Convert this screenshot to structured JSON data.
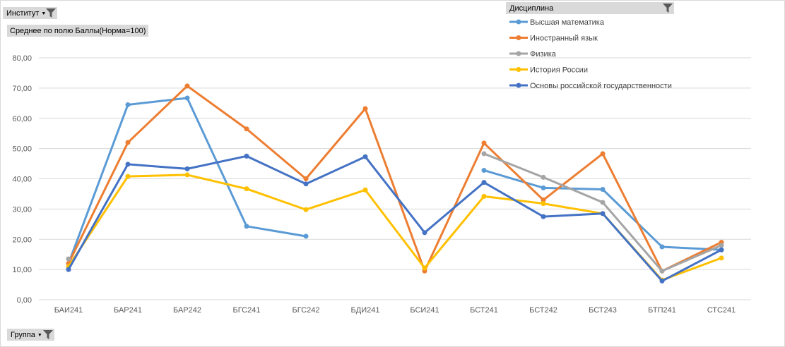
{
  "filters": {
    "institute_label": "Институт",
    "group_label": "Группа",
    "discipline_label": "Дисциплина",
    "value_field_label": "Среднее по полю Баллы(Норма=100)"
  },
  "chart_data": {
    "type": "line",
    "title": "",
    "xlabel": "",
    "ylabel": "",
    "ylim": [
      0,
      80
    ],
    "ytick_step": 10,
    "ytick_labels": [
      "0,00",
      "10,00",
      "20,00",
      "30,00",
      "40,00",
      "50,00",
      "60,00",
      "70,00",
      "80,00"
    ],
    "grid": true,
    "legend_position": "top-right",
    "categories": [
      "БАИ241",
      "БАР241",
      "БАР242",
      "БГС241",
      "БГС242",
      "БДИ241",
      "БСИ241",
      "БСТ241",
      "БСТ242",
      "БСТ243",
      "БТП241",
      "СТС241"
    ],
    "series": [
      {
        "name": "Высшая математика",
        "color": "#5b9bd5",
        "values": [
          12,
          64.5,
          66.7,
          24.3,
          21,
          null,
          null,
          42.8,
          37,
          36.5,
          17.5,
          16.5
        ]
      },
      {
        "name": "Иностранный язык",
        "color": "#ed7d31",
        "values": [
          12,
          52,
          70.7,
          56.5,
          40,
          63.2,
          9.5,
          51.8,
          33,
          48.3,
          9.5,
          19
        ]
      },
      {
        "name": "Физика",
        "color": "#a5a5a5",
        "values": [
          13.5,
          null,
          null,
          null,
          null,
          null,
          null,
          48.3,
          40.5,
          32.2,
          9.5,
          18
        ]
      },
      {
        "name": "История России",
        "color": "#ffc000",
        "values": [
          11,
          40.8,
          41.3,
          36.7,
          29.8,
          36.3,
          10.5,
          34.2,
          31.8,
          28.5,
          6.5,
          13.8
        ]
      },
      {
        "name": "Основы российской государственности",
        "color": "#4472c4",
        "values": [
          10,
          44.8,
          43.3,
          47.5,
          38.3,
          47.3,
          22.2,
          38.8,
          27.5,
          28.5,
          6.2,
          16.5
        ]
      }
    ]
  }
}
